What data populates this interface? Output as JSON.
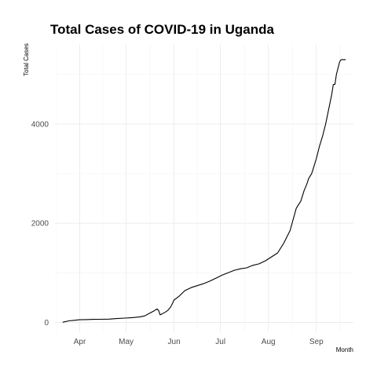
{
  "chart_data": {
    "type": "line",
    "title": "Total Cases of COVID-19 in Uganda",
    "xlabel": "Month",
    "ylabel": "Total Cases",
    "x_ticks": [
      {
        "label": "Apr",
        "date": "2020-04-01"
      },
      {
        "label": "May",
        "date": "2020-05-01"
      },
      {
        "label": "Jun",
        "date": "2020-06-01"
      },
      {
        "label": "Jul",
        "date": "2020-07-01"
      },
      {
        "label": "Aug",
        "date": "2020-08-01"
      },
      {
        "label": "Sep",
        "date": "2020-09-01"
      }
    ],
    "y_ticks": [
      0,
      2000,
      4000
    ],
    "xlim": [
      "2020-03-16",
      "2020-09-25"
    ],
    "ylim": [
      -200,
      5600
    ],
    "grid": true,
    "series": [
      {
        "x": [
          "2020-03-21",
          "2020-03-25",
          "2020-03-28",
          "2020-04-01",
          "2020-04-05",
          "2020-04-10",
          "2020-04-15",
          "2020-04-20",
          "2020-04-25",
          "2020-04-30",
          "2020-05-05",
          "2020-05-10",
          "2020-05-13",
          "2020-05-16",
          "2020-05-19",
          "2020-05-21",
          "2020-05-22",
          "2020-05-23",
          "2020-05-26",
          "2020-05-28",
          "2020-05-30",
          "2020-06-01",
          "2020-06-04",
          "2020-06-08",
          "2020-06-12",
          "2020-06-16",
          "2020-06-20",
          "2020-06-24",
          "2020-06-28",
          "2020-07-02",
          "2020-07-06",
          "2020-07-10",
          "2020-07-14",
          "2020-07-18",
          "2020-07-22",
          "2020-07-26",
          "2020-07-30",
          "2020-08-03",
          "2020-08-07",
          "2020-08-11",
          "2020-08-15",
          "2020-08-19",
          "2020-08-22",
          "2020-08-24",
          "2020-08-26",
          "2020-08-27",
          "2020-08-29",
          "2020-08-30",
          "2020-09-01",
          "2020-09-03",
          "2020-09-05",
          "2020-09-07",
          "2020-09-09",
          "2020-09-11",
          "2020-09-12",
          "2020-09-13",
          "2020-09-14",
          "2020-09-16",
          "2020-09-17",
          "2020-09-18",
          "2020-09-19",
          "2020-09-20"
        ],
        "values": [
          1,
          30,
          40,
          52,
          55,
          60,
          62,
          65,
          75,
          85,
          95,
          110,
          130,
          180,
          230,
          270,
          240,
          150,
          200,
          240,
          320,
          450,
          520,
          640,
          700,
          740,
          780,
          830,
          890,
          950,
          1000,
          1050,
          1080,
          1100,
          1150,
          1180,
          1240,
          1320,
          1400,
          1600,
          1850,
          2300,
          2450,
          2650,
          2800,
          2900,
          3000,
          3100,
          3300,
          3550,
          3750,
          4000,
          4300,
          4600,
          4800,
          4800,
          5000,
          5250,
          5300,
          5300,
          5300,
          5300
        ]
      }
    ]
  }
}
